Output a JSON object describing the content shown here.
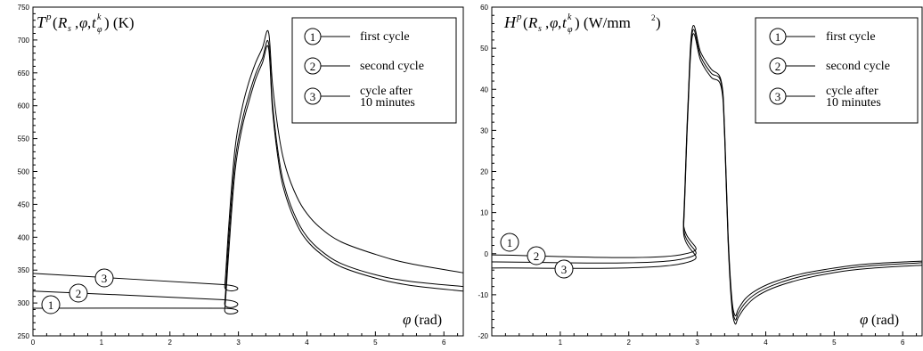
{
  "chart_data": [
    {
      "type": "line",
      "title": "T^p(R_s ,φ,t_φ^k)  (K)",
      "xlabel": "φ (rad)",
      "ylabel": "",
      "xlim": [
        0,
        6.2832
      ],
      "ylim": [
        250,
        750
      ],
      "xticks": [
        0,
        1,
        2,
        3,
        4,
        5,
        6
      ],
      "yticks": [
        250,
        300,
        350,
        400,
        450,
        500,
        550,
        600,
        650,
        700,
        750
      ],
      "series": [
        {
          "name": "first cycle",
          "x": [
            0,
            2.76,
            2.8,
            2.86,
            2.95,
            3.05,
            3.15,
            3.25,
            3.35,
            3.44,
            3.5,
            3.6,
            3.7,
            3.85,
            4.0,
            4.2,
            4.5,
            5.0,
            5.5,
            6.2832
          ],
          "values": [
            292,
            292,
            290,
            380,
            500,
            565,
            605,
            640,
            665,
            688,
            590,
            505,
            460,
            420,
            395,
            375,
            355,
            338,
            327,
            318
          ]
        },
        {
          "name": "second cycle",
          "x": [
            0,
            2.76,
            2.8,
            2.86,
            2.95,
            3.05,
            3.15,
            3.25,
            3.35,
            3.44,
            3.5,
            3.6,
            3.7,
            3.85,
            4.0,
            4.2,
            4.5,
            5.0,
            5.5,
            6.2832
          ],
          "values": [
            318,
            305,
            300,
            400,
            515,
            575,
            615,
            648,
            672,
            696,
            600,
            515,
            468,
            427,
            401,
            380,
            360,
            343,
            333,
            325
          ]
        },
        {
          "name": "cycle after 10 minutes",
          "x": [
            0,
            2.76,
            2.8,
            2.86,
            2.95,
            3.05,
            3.15,
            3.25,
            3.35,
            3.44,
            3.5,
            3.6,
            3.7,
            3.85,
            4.0,
            4.2,
            4.5,
            5.0,
            5.5,
            6.2832
          ],
          "values": [
            345,
            328,
            326,
            420,
            535,
            595,
            635,
            665,
            688,
            712,
            630,
            550,
            503,
            462,
            436,
            414,
            393,
            374,
            360,
            346
          ]
        }
      ],
      "legend": [
        "first cycle",
        "second cycle",
        "cycle after",
        "10 minutes"
      ],
      "curve_labels": [
        "1",
        "2",
        "3"
      ],
      "legend_placement": "top-right",
      "grid": false
    },
    {
      "type": "line",
      "title": "H^p(R_s ,φ,t_φ^k)  (W/mm²)",
      "xlabel": "φ (rad)",
      "ylabel": "",
      "xlim": [
        0,
        6.2832
      ],
      "ylim": [
        -20,
        60
      ],
      "xticks": [
        1,
        2,
        3,
        4,
        5,
        6
      ],
      "yticks": [
        -20,
        -10,
        0,
        10,
        20,
        30,
        40,
        50,
        60
      ],
      "series": [
        {
          "name": "first cycle",
          "x": [
            0,
            2.75,
            2.8,
            2.86,
            2.93,
            3.05,
            3.2,
            3.35,
            3.4,
            3.45,
            3.5,
            3.55,
            3.6,
            3.7,
            3.85,
            4.1,
            4.5,
            5.0,
            5.5,
            6.2832
          ],
          "values": [
            -0.3,
            -0.3,
            8,
            35,
            55,
            49,
            45,
            42,
            30,
            5,
            -10,
            -15,
            -13.5,
            -11,
            -9,
            -7,
            -5,
            -3.5,
            -2.5,
            -1.8
          ]
        },
        {
          "name": "second cycle",
          "x": [
            0,
            2.75,
            2.8,
            2.86,
            2.93,
            3.05,
            3.2,
            3.35,
            3.4,
            3.45,
            3.5,
            3.55,
            3.6,
            3.7,
            3.85,
            4.1,
            4.5,
            5.0,
            5.5,
            6.2832
          ],
          "values": [
            -2.0,
            -1.4,
            7,
            34,
            54,
            48,
            44,
            41.5,
            29,
            4,
            -11,
            -16,
            -14.5,
            -12,
            -9.8,
            -7.7,
            -5.6,
            -4.0,
            -3.0,
            -2.2
          ]
        },
        {
          "name": "cycle after 10 minutes",
          "x": [
            0,
            2.75,
            2.8,
            2.86,
            2.93,
            3.05,
            3.2,
            3.35,
            3.4,
            3.45,
            3.5,
            3.55,
            3.6,
            3.7,
            3.85,
            4.1,
            4.5,
            5.0,
            5.5,
            6.2832
          ],
          "values": [
            -3.5,
            -2.5,
            6,
            33,
            53,
            47,
            43,
            40.5,
            28,
            3,
            -12,
            -17,
            -15.5,
            -13,
            -10.6,
            -8.4,
            -6.3,
            -4.6,
            -3.6,
            -2.8
          ]
        }
      ],
      "legend": [
        "first cycle",
        "second cycle",
        "cycle after",
        "10 minutes"
      ],
      "curve_labels": [
        "1",
        "2",
        "3"
      ],
      "legend_placement": "top-right",
      "grid": false
    }
  ]
}
